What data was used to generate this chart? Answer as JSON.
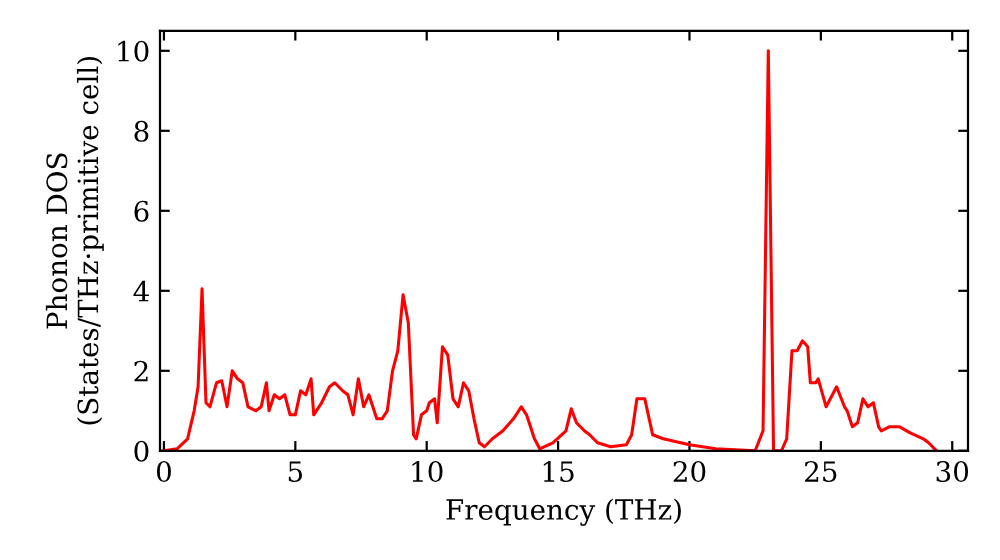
{
  "chart_data": {
    "type": "line",
    "xlabel": "Frequency (THz)",
    "ylabel": "Phonon DOS\n(States/THz·primitive cell)",
    "xlim": [
      -0.15,
      30.6
    ],
    "ylim": [
      0,
      10.5
    ],
    "xticks": [
      0,
      5,
      10,
      15,
      20,
      25,
      30
    ],
    "yticks": [
      0,
      2,
      4,
      6,
      8,
      10
    ],
    "grid": false,
    "legend": false,
    "marker": "none",
    "line_style": "solid",
    "series": [
      {
        "color": "#ff0000",
        "x": [
          0,
          0.5,
          0.9,
          1.15,
          1.3,
          1.45,
          1.6,
          1.75,
          2.0,
          2.2,
          2.4,
          2.6,
          2.8,
          3.0,
          3.2,
          3.5,
          3.7,
          3.9,
          4.0,
          4.2,
          4.4,
          4.6,
          4.8,
          5.0,
          5.2,
          5.4,
          5.6,
          5.7,
          6.0,
          6.3,
          6.5,
          6.8,
          7.0,
          7.2,
          7.4,
          7.6,
          7.8,
          8.1,
          8.3,
          8.5,
          8.7,
          8.9,
          9.1,
          9.3,
          9.5,
          9.6,
          9.8,
          10.0,
          10.1,
          10.3,
          10.4,
          10.6,
          10.8,
          11.0,
          11.2,
          11.4,
          11.6,
          11.8,
          12.0,
          12.2,
          12.5,
          12.9,
          13.3,
          13.6,
          13.8,
          14.1,
          14.3,
          14.8,
          15.3,
          15.5,
          15.7,
          16.0,
          16.2,
          16.5,
          17.0,
          17.6,
          17.8,
          18.0,
          18.3,
          18.6,
          19.0,
          20.0,
          21.0,
          22.5,
          22.8,
          23.0,
          23.2,
          23.5,
          23.7,
          23.9,
          24.1,
          24.3,
          24.5,
          24.6,
          24.8,
          24.9,
          25.2,
          25.6,
          25.9,
          26.0,
          26.2,
          26.4,
          26.6,
          26.8,
          27.0,
          27.2,
          27.3,
          27.6,
          28.0,
          28.4,
          28.9,
          29.1,
          29.4
        ],
        "values": [
          0,
          0.05,
          0.3,
          1.0,
          1.6,
          4.05,
          1.2,
          1.1,
          1.7,
          1.75,
          1.1,
          2.0,
          1.8,
          1.7,
          1.1,
          1.0,
          1.1,
          1.7,
          1.0,
          1.4,
          1.3,
          1.4,
          0.9,
          0.9,
          1.5,
          1.4,
          1.8,
          0.9,
          1.2,
          1.6,
          1.7,
          1.5,
          1.4,
          0.9,
          1.8,
          1.1,
          1.4,
          0.8,
          0.8,
          1.0,
          2.0,
          2.5,
          3.9,
          3.2,
          0.4,
          0.3,
          0.9,
          1.0,
          1.2,
          1.3,
          0.7,
          2.6,
          2.4,
          1.3,
          1.1,
          1.7,
          1.5,
          0.8,
          0.2,
          0.1,
          0.3,
          0.5,
          0.8,
          1.1,
          0.9,
          0.3,
          0.05,
          0.2,
          0.5,
          1.05,
          0.7,
          0.5,
          0.4,
          0.2,
          0.1,
          0.15,
          0.4,
          1.3,
          1.3,
          0.4,
          0.3,
          0.15,
          0.05,
          0,
          0.5,
          10.0,
          0,
          0,
          0.3,
          2.5,
          2.5,
          2.75,
          2.6,
          1.7,
          1.7,
          1.8,
          1.1,
          1.6,
          1.1,
          1.0,
          0.6,
          0.7,
          1.3,
          1.1,
          1.2,
          0.6,
          0.5,
          0.6,
          0.6,
          0.45,
          0.3,
          0.2,
          0
        ]
      }
    ]
  }
}
